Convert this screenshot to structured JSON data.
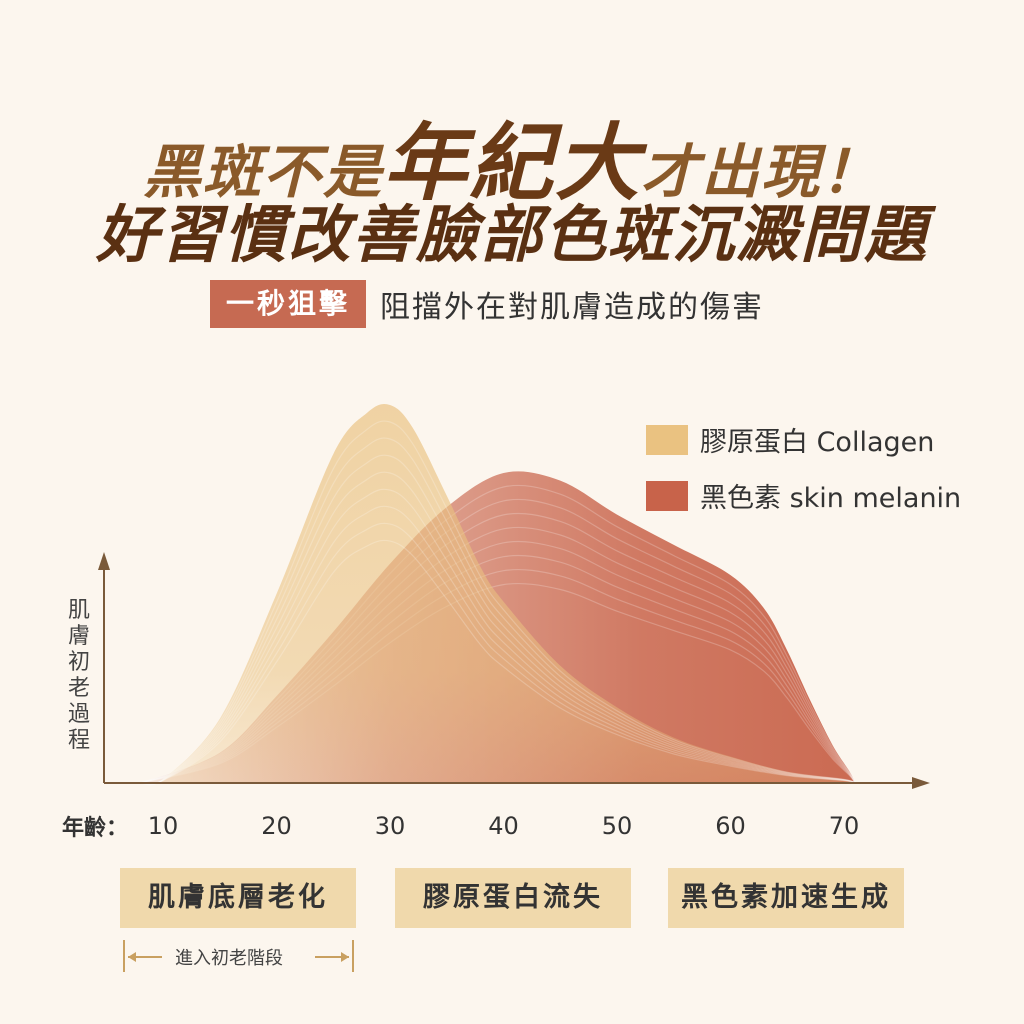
{
  "header": {
    "title_line1_a": "黑斑不是",
    "title_line1_b": "年紀大",
    "title_line1_c": "才出現！",
    "title_line2": "好習慣改善臉部色斑沉澱問題",
    "tag_label": "一秒狙擊",
    "tag_text": "阻擋外在對肌膚造成的傷害"
  },
  "chart_data": {
    "type": "area",
    "title": "",
    "ylabel": "肌膚初老過程",
    "xlabel": "年齡：",
    "x_ticks": [
      10,
      20,
      30,
      40,
      50,
      60,
      70
    ],
    "xlim": [
      7,
      78
    ],
    "ylim": [
      0,
      100
    ],
    "grid": false,
    "legend_position": "top-right",
    "series": [
      {
        "name": "黑色素 skin melanin",
        "color": "#c8634a",
        "x": [
          8,
          15,
          20,
          25,
          30,
          35,
          40,
          45,
          50,
          55,
          60,
          63,
          65,
          67,
          69,
          70.5,
          71
        ],
        "y": [
          0,
          8,
          23,
          40,
          58,
          73,
          82,
          80,
          71,
          63,
          55,
          46,
          35,
          22,
          10,
          3,
          0
        ]
      },
      {
        "name": "膠原蛋白 Collagen",
        "color": "#eac281",
        "x": [
          8,
          10,
          15,
          20,
          25,
          28,
          30,
          32,
          35,
          38,
          40,
          45,
          50,
          55,
          60,
          65,
          70,
          71
        ],
        "y": [
          0,
          1,
          17,
          50,
          87,
          98,
          100,
          94,
          76,
          57,
          48,
          31,
          20,
          12,
          7,
          3,
          1,
          0
        ]
      }
    ],
    "phases": [
      "肌膚底層老化",
      "膠原蛋白流失",
      "黑色素加速生成"
    ],
    "range_annotation": "進入初老階段"
  }
}
